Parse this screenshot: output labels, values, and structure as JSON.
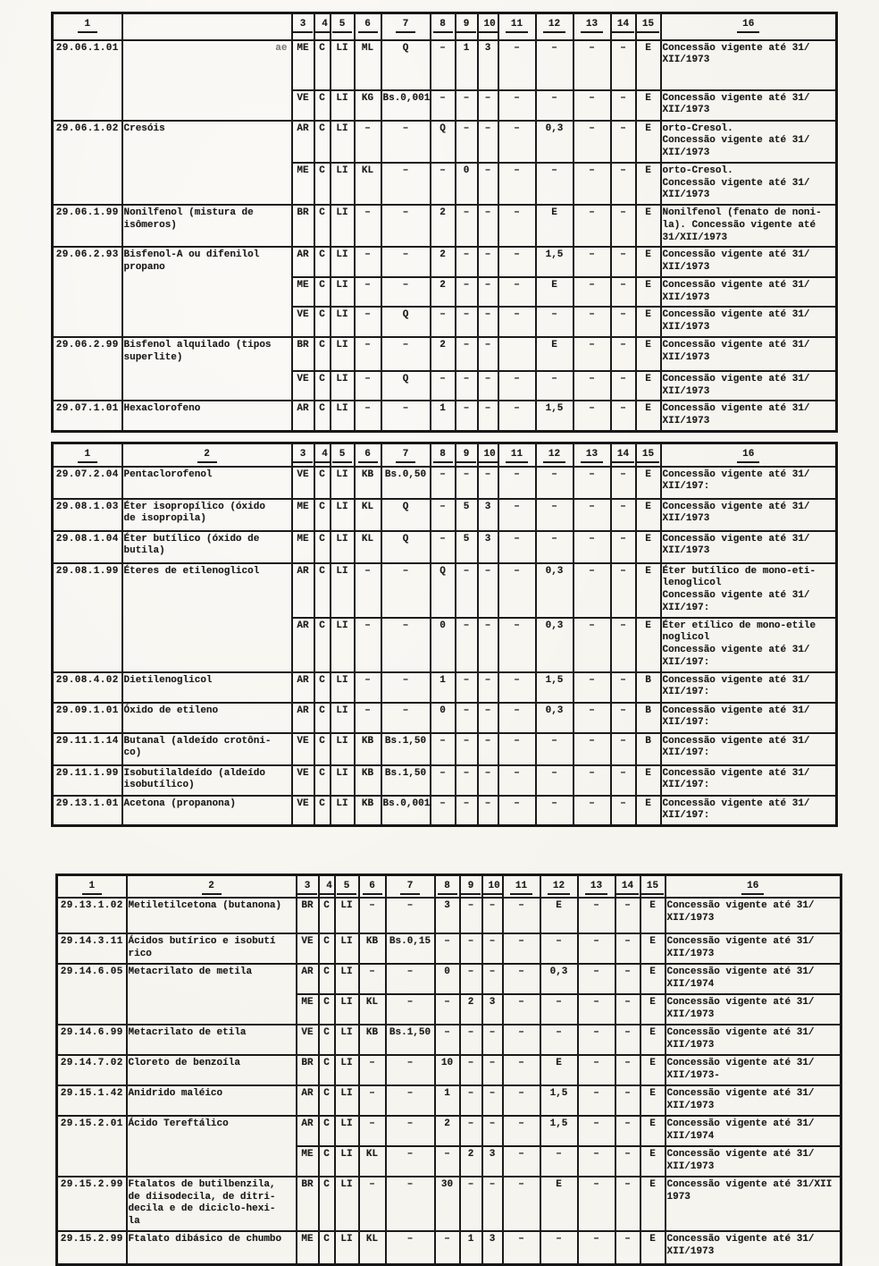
{
  "colors": {
    "paper": "#f6f4ee",
    "ink": "#1b1b1b"
  },
  "tables": [
    {
      "name": "concessions-table-1",
      "headers": [
        "1",
        "",
        "3",
        "4",
        "5",
        "6",
        "7",
        "8",
        "9",
        "10",
        "11",
        "12",
        "13",
        "14",
        "15",
        "16"
      ],
      "groups": [
        {
          "code": "29.06.1.01",
          "desc": "ae",
          "desc_faded": true,
          "rows": [
            {
              "c": [
                "ME",
                "C",
                "LI",
                "ML",
                "Q",
                "–",
                "1",
                "3",
                "–",
                "–",
                "–",
                "–",
                "E"
              ],
              "obs": "Concessão vigente até 31/\nXII/1973"
            },
            {
              "c": [
                "VE",
                "C",
                "LI",
                "KG",
                "Bs.0,001",
                "–",
                "–",
                "–",
                "–",
                "–",
                "–",
                "–",
                "E"
              ],
              "obs": "Concessão vigente até 31/\nXII/1973"
            }
          ]
        },
        {
          "code": "29.06.1.02",
          "desc": "Cresóis",
          "rows": [
            {
              "c": [
                "AR",
                "C",
                "LI",
                "–",
                "–",
                "Q",
                "–",
                "–",
                "–",
                "0,3",
                "–",
                "–",
                "E"
              ],
              "obs": "orto-Cresol.\nConcessão vigente até 31/\nXII/1973"
            },
            {
              "c": [
                "ME",
                "C",
                "LI",
                "KL",
                "–",
                "–",
                "0",
                "–",
                "–",
                "–",
                "–",
                "–",
                "E"
              ],
              "obs": "orto-Cresol.\nConcessão vigente até 31/\nXII/1973"
            }
          ]
        },
        {
          "code": "29.06.1.99",
          "desc": "Nonilfenol (mistura de\nisômeros)",
          "rows": [
            {
              "c": [
                "BR",
                "C",
                "LI",
                "–",
                "–",
                "2",
                "–",
                "–",
                "–",
                "E",
                "–",
                "–",
                "E"
              ],
              "obs": "Nonilfenol (fenato de noni-\nla). Concessão vigente até\n31/XII/1973"
            }
          ]
        },
        {
          "code": "29.06.2.93",
          "desc": "Bisfenol-A ou difenilol\npropano",
          "rows": [
            {
              "c": [
                "AR",
                "C",
                "LI",
                "–",
                "–",
                "2",
                "–",
                "–",
                "–",
                "1,5",
                "–",
                "–",
                "E"
              ],
              "obs": "Concessão vigente até 31/\nXII/1973"
            },
            {
              "c": [
                "ME",
                "C",
                "LI",
                "–",
                "–",
                "2",
                "–",
                "–",
                "–",
                "E",
                "–",
                "–",
                "E"
              ],
              "obs": "Concessão vigente até 31/\nXII/1973"
            },
            {
              "c": [
                "VE",
                "C",
                "LI",
                "–",
                "Q",
                "–",
                "–",
                "–",
                "–",
                "–",
                "–",
                "–",
                "E"
              ],
              "obs": "Concessão vigente até 31/\nXII/1973"
            }
          ]
        },
        {
          "code": "29.06.2.99",
          "desc": "Bisfenol alquilado (tipos\nsuperlite)",
          "rows": [
            {
              "c": [
                "BR",
                "C",
                "LI",
                "–",
                "–",
                "2",
                "–",
                "–",
                "",
                "E",
                "–",
                "–",
                "E"
              ],
              "obs": "Concessão vigente até 31/\nXII/1973"
            },
            {
              "c": [
                "VE",
                "C",
                "LI",
                "–",
                "Q",
                "–",
                "–",
                "–",
                "–",
                "–",
                "–",
                "–",
                "E"
              ],
              "obs": "Concessão vigente até 31/\nXII/1973"
            }
          ]
        },
        {
          "code": "29.07.1.01",
          "desc": "Hexaclorofeno",
          "rows": [
            {
              "c": [
                "AR",
                "C",
                "LI",
                "–",
                "–",
                "1",
                "–",
                "–",
                "–",
                "1,5",
                "–",
                "–",
                "E"
              ],
              "obs": "Concessão vigente até 31/\nXII/1973"
            }
          ]
        }
      ]
    },
    {
      "name": "concessions-table-2",
      "headers": [
        "1",
        "2",
        "3",
        "4",
        "5",
        "6",
        "7",
        "8",
        "9",
        "10",
        "11",
        "12",
        "13",
        "14",
        "15",
        "16"
      ],
      "groups": [
        {
          "code": "29.07.2.04",
          "desc": "Pentaclorofenol",
          "rows": [
            {
              "c": [
                "VE",
                "C",
                "LI",
                "KB",
                "Bs.0,50",
                "–",
                "–",
                "–",
                "–",
                "–",
                "–",
                "–",
                "E"
              ],
              "obs": "Concessão vigente até 31/\nXII/197:"
            }
          ]
        },
        {
          "code": "29.08.1.03",
          "desc": "Éter isopropílico (óxido\nde isopropila)",
          "rows": [
            {
              "c": [
                "ME",
                "C",
                "LI",
                "KL",
                "Q",
                "–",
                "5",
                "3",
                "–",
                "–",
                "–",
                "–",
                "E"
              ],
              "obs": "Concessão vigente até 31/\nXII/1973"
            }
          ]
        },
        {
          "code": "29.08.1.04",
          "desc": "Éter butílico (óxido de\nbutila)",
          "rows": [
            {
              "c": [
                "ME",
                "C",
                "LI",
                "KL",
                "Q",
                "–",
                "5",
                "3",
                "–",
                "–",
                "–",
                "–",
                "E"
              ],
              "obs": "Concessão vigente até 31/\nXII/1973"
            }
          ]
        },
        {
          "code": "29.08.1.99",
          "desc": "Éteres de etilenoglicol",
          "rows": [
            {
              "c": [
                "AR",
                "C",
                "LI",
                "–",
                "–",
                "Q",
                "–",
                "–",
                "–",
                "0,3",
                "–",
                "–",
                "E"
              ],
              "obs": "Éter butílico de mono-eti-\nlenoglicol\nConcessão vigente até 31/\nXII/197:"
            },
            {
              "c": [
                "AR",
                "C",
                "LI",
                "–",
                "–",
                "0",
                "–",
                "–",
                "–",
                "0,3",
                "–",
                "–",
                "E"
              ],
              "obs": "Éter etílico de mono-etile\nnoglicol\nConcessão vigente até 31/\nXII/197:"
            }
          ]
        },
        {
          "code": "29.08.4.02",
          "desc": "Dietilenoglicol",
          "rows": [
            {
              "c": [
                "AR",
                "C",
                "LI",
                "–",
                "–",
                "1",
                "–",
                "–",
                "–",
                "1,5",
                "–",
                "–",
                "B"
              ],
              "obs": "Concessão vigente até 31/\nXII/197:"
            }
          ]
        },
        {
          "code": "29.09.1.01",
          "desc": "Óxido de etileno",
          "rows": [
            {
              "c": [
                "AR",
                "C",
                "LI",
                "–",
                "–",
                "0",
                "–",
                "–",
                "–",
                "0,3",
                "–",
                "–",
                "B"
              ],
              "obs": "Concessão vigente até 31/\nXII/197:"
            }
          ]
        },
        {
          "code": "29.11.1.14",
          "desc": "Butanal (aldeído crotôni-\nco)",
          "rows": [
            {
              "c": [
                "VE",
                "C",
                "LI",
                "KB",
                "Bs.1,50",
                "–",
                "–",
                "–",
                "–",
                "–",
                "–",
                "–",
                "B"
              ],
              "obs": "Concessão vigente até 31/\nXII/197:"
            }
          ]
        },
        {
          "code": "29.11.1.99",
          "desc": "Isobutilaldeído (aldeído\nisobutílico)",
          "rows": [
            {
              "c": [
                "VE",
                "C",
                "LI",
                "KB",
                "Bs.1,50",
                "–",
                "–",
                "–",
                "–",
                "–",
                "–",
                "–",
                "E"
              ],
              "obs": "Concessão vigente até 31/\nXII/197:"
            }
          ]
        },
        {
          "code": "29.13.1.01",
          "desc": "Acetona (propanona)",
          "rows": [
            {
              "c": [
                "VE",
                "C",
                "LI",
                "KB",
                "Bs.0,001",
                "–",
                "–",
                "–",
                "–",
                "–",
                "–",
                "–",
                "E"
              ],
              "obs": "Concessão vigente até 31/\nXII/197:"
            }
          ]
        }
      ]
    },
    {
      "name": "concessions-table-3",
      "headers": [
        "1",
        "2",
        "3",
        "4",
        "5",
        "6",
        "7",
        "8",
        "9",
        "10",
        "11",
        "12",
        "13",
        "14",
        "15",
        "16"
      ],
      "groups": [
        {
          "code": "29.13.1.02",
          "desc": "Metiletilcetona (butanona)",
          "rows": [
            {
              "c": [
                "BR",
                "C",
                "LI",
                "–",
                "–",
                "3",
                "–",
                "–",
                "–",
                "E",
                "–",
                "–",
                "E"
              ],
              "obs": "Concessão vigente até 31/\nXII/1973"
            }
          ]
        },
        {
          "code": "29.14.3.11",
          "desc": "Ácidos butírico e isobutí\nrico",
          "rows": [
            {
              "c": [
                "VE",
                "C",
                "LI",
                "KB",
                "Bs.0,15",
                "–",
                "–",
                "–",
                "–",
                "–",
                "–",
                "–",
                "E"
              ],
              "obs": "Concessão vigente até 31/\nXII/1973"
            }
          ]
        },
        {
          "code": "29.14.6.05",
          "desc": "Metacrilato de metila",
          "rows": [
            {
              "c": [
                "AR",
                "C",
                "LI",
                "–",
                "–",
                "0",
                "–",
                "–",
                "–",
                "0,3",
                "–",
                "–",
                "E"
              ],
              "obs": "Concessão vigente até 31/\nXII/1974"
            },
            {
              "c": [
                "ME",
                "C",
                "LI",
                "KL",
                "–",
                "–",
                "2",
                "3",
                "–",
                "–",
                "–",
                "–",
                "E"
              ],
              "obs": "Concessão vigente até 31/\nXII/1973"
            }
          ]
        },
        {
          "code": "29.14.6.99",
          "desc": "Metacrilato de etila",
          "rows": [
            {
              "c": [
                "VE",
                "C",
                "LI",
                "KB",
                "Bs.1,50",
                "–",
                "–",
                "–",
                "–",
                "–",
                "–",
                "–",
                "E"
              ],
              "obs": "Concessão vigente até 31/\nXII/1973"
            }
          ]
        },
        {
          "code": "29.14.7.02",
          "desc": "Cloreto de benzoíla",
          "rows": [
            {
              "c": [
                "BR",
                "C",
                "LI",
                "–",
                "–",
                "10",
                "–",
                "–",
                "–",
                "E",
                "–",
                "–",
                "E"
              ],
              "obs": "Concessão vigente até 31/\nXII/1973-"
            }
          ]
        },
        {
          "code": "29.15.1.42",
          "desc": "Anidrido maléico",
          "rows": [
            {
              "c": [
                "AR",
                "C",
                "LI",
                "–",
                "–",
                "1",
                "–",
                "–",
                "–",
                "1,5",
                "–",
                "–",
                "E"
              ],
              "obs": "Concessão vigente até 31/\nXII/1973"
            }
          ]
        },
        {
          "code": "29.15.2.01",
          "desc": "Ácido Tereftálico",
          "rows": [
            {
              "c": [
                "AR",
                "C",
                "LI",
                "–",
                "–",
                "2",
                "–",
                "–",
                "–",
                "1,5",
                "–",
                "–",
                "E"
              ],
              "obs": "Concessão vigente até 31/\nXII/1974"
            },
            {
              "c": [
                "ME",
                "C",
                "LI",
                "KL",
                "–",
                "–",
                "2",
                "3",
                "–",
                "–",
                "–",
                "–",
                "E"
              ],
              "obs": "Concessão vigente até 31/\nXII/1973"
            }
          ]
        },
        {
          "code": "29.15.2.99",
          "desc": "Ftalatos de butilbenzila,\nde diisodecila, de ditri-\ndecila e de diciclo-hexi-\nla",
          "rows": [
            {
              "c": [
                "BR",
                "C",
                "LI",
                "–",
                "–",
                "30",
                "–",
                "–",
                "–",
                "E",
                "–",
                "–",
                "E"
              ],
              "obs": "Concessão vigente até 31/XII\n1973"
            }
          ]
        },
        {
          "code": "29.15.2.99",
          "desc": "Ftalato dibásico de chumbo",
          "rows": [
            {
              "c": [
                "ME",
                "C",
                "LI",
                "KL",
                "–",
                "–",
                "1",
                "3",
                "–",
                "–",
                "–",
                "–",
                "E"
              ],
              "obs": "Concessão vigente até 31/\nXII/1973"
            }
          ]
        }
      ]
    }
  ]
}
